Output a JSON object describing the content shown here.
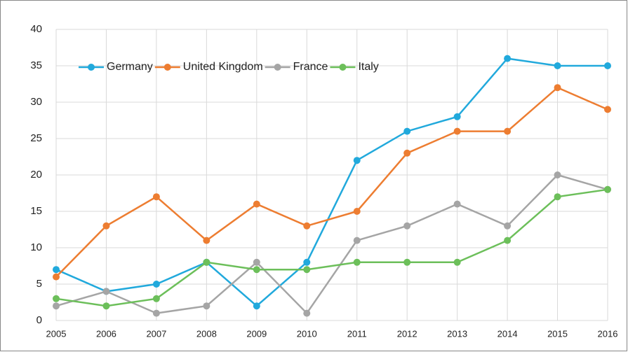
{
  "chart_data": {
    "type": "line",
    "x": [
      2005,
      2006,
      2007,
      2008,
      2009,
      2010,
      2011,
      2012,
      2013,
      2014,
      2015,
      2016
    ],
    "xlim": [
      2005,
      2016
    ],
    "xticks": [
      2005,
      2006,
      2007,
      2008,
      2009,
      2010,
      2011,
      2012,
      2013,
      2014,
      2015,
      2016
    ],
    "ylim": [
      0,
      40
    ],
    "yticks": [
      0,
      5,
      10,
      15,
      20,
      25,
      30,
      35,
      40
    ],
    "grid": true,
    "legend": "top-left",
    "series": [
      {
        "name": "Germany",
        "color": "#21a9dc",
        "values": [
          7,
          4,
          5,
          8,
          2,
          8,
          22,
          26,
          28,
          36,
          35,
          35
        ]
      },
      {
        "name": "United Kingdom",
        "color": "#ed7d31",
        "values": [
          6,
          13,
          17,
          11,
          16,
          13,
          15,
          23,
          26,
          26,
          32,
          29
        ]
      },
      {
        "name": "France",
        "color": "#a5a5a5",
        "values": [
          2,
          4,
          1,
          2,
          8,
          1,
          11,
          13,
          16,
          13,
          20,
          18
        ]
      },
      {
        "name": "Italy",
        "color": "#6cbf5a",
        "values": [
          3,
          2,
          3,
          8,
          7,
          7,
          8,
          8,
          8,
          11,
          17,
          18
        ]
      }
    ]
  }
}
